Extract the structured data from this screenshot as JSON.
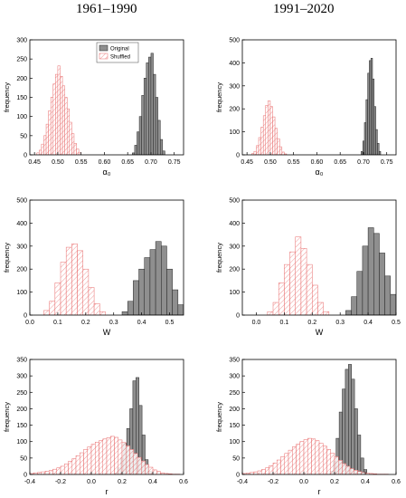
{
  "column_titles": [
    "1961–1990",
    "1991–2020"
  ],
  "colors": {
    "original": "#8f8f8f",
    "shuffled_stroke": "#e86a6a",
    "shuffled_fill": "#ffffff",
    "axes": "#000000"
  },
  "chart_data": [
    {
      "type": "bar",
      "panel": "alpha0-1961-1990",
      "xlabel": "α₀",
      "ylabel": "frequency",
      "xlim": [
        0.44,
        0.77
      ],
      "ylim": [
        0,
        300
      ],
      "xticks": [
        "0.45",
        "0.50",
        "0.55",
        "0.60",
        "0.65",
        "0.70",
        "0.75"
      ],
      "yticks": [
        "0",
        "50",
        "100",
        "150",
        "200",
        "250",
        "300"
      ],
      "legend": {
        "placement": "top-center",
        "entries": [
          "Original",
          "Shuffled"
        ]
      },
      "series": [
        {
          "name": "Shuffled",
          "bin_start": 0.455,
          "bin_width": 0.005,
          "values": [
            5,
            12,
            28,
            50,
            80,
            115,
            150,
            185,
            210,
            232,
            205,
            180,
            150,
            120,
            85,
            55,
            30,
            15,
            5
          ]
        },
        {
          "name": "Original",
          "bin_start": 0.66,
          "bin_width": 0.005,
          "values": [
            5,
            25,
            60,
            100,
            155,
            200,
            240,
            255,
            265,
            210,
            150,
            90,
            40,
            10
          ]
        }
      ]
    },
    {
      "type": "bar",
      "panel": "alpha0-1991-2020",
      "xlabel": "α₀",
      "ylabel": "frequency",
      "xlim": [
        0.44,
        0.77
      ],
      "ylim": [
        0,
        500
      ],
      "xticks": [
        "0.45",
        "0.50",
        "0.55",
        "0.60",
        "0.65",
        "0.70",
        "0.75"
      ],
      "yticks": [
        "0",
        "100",
        "200",
        "300",
        "400",
        "500"
      ],
      "series": [
        {
          "name": "Shuffled",
          "bin_start": 0.46,
          "bin_width": 0.005,
          "values": [
            5,
            15,
            40,
            75,
            120,
            170,
            215,
            235,
            210,
            165,
            115,
            70,
            35,
            12,
            4
          ]
        },
        {
          "name": "Original",
          "bin_start": 0.695,
          "bin_width": 0.0035,
          "values": [
            15,
            60,
            140,
            240,
            355,
            410,
            420,
            330,
            210,
            110,
            50,
            15
          ]
        }
      ]
    },
    {
      "type": "bar",
      "panel": "W-1961-1990",
      "xlabel": "W",
      "ylabel": "frequency",
      "xlim": [
        0.0,
        0.55
      ],
      "ylim": [
        0,
        500
      ],
      "xticks": [
        "0.0",
        "0.1",
        "0.2",
        "0.3",
        "0.4",
        "0.5"
      ],
      "yticks": [
        "0",
        "100",
        "200",
        "300",
        "400",
        "500"
      ],
      "series": [
        {
          "name": "Shuffled",
          "bin_start": 0.05,
          "bin_width": 0.02,
          "values": [
            20,
            60,
            140,
            230,
            295,
            310,
            280,
            200,
            120,
            50,
            15
          ]
        },
        {
          "name": "Original",
          "bin_start": 0.33,
          "bin_width": 0.02,
          "values": [
            15,
            60,
            150,
            200,
            250,
            285,
            320,
            300,
            200,
            110,
            45,
            10
          ]
        }
      ]
    },
    {
      "type": "bar",
      "panel": "W-1991-2020",
      "xlabel": "W",
      "ylabel": "frequency",
      "xlim": [
        -0.05,
        0.5
      ],
      "ylim": [
        0,
        500
      ],
      "xticks": [
        "0.0",
        "0.1",
        "0.2",
        "0.3",
        "0.4",
        "0.5"
      ],
      "yticks": [
        "0",
        "100",
        "200",
        "300",
        "400",
        "500"
      ],
      "series": [
        {
          "name": "Shuffled",
          "bin_start": 0.04,
          "bin_width": 0.02,
          "values": [
            15,
            55,
            140,
            220,
            275,
            340,
            290,
            220,
            130,
            55,
            15
          ]
        },
        {
          "name": "Original",
          "bin_start": 0.32,
          "bin_width": 0.02,
          "values": [
            20,
            80,
            190,
            300,
            380,
            355,
            270,
            170,
            90,
            40,
            10
          ]
        }
      ]
    },
    {
      "type": "bar",
      "panel": "r-1961-1990",
      "xlabel": "r",
      "ylabel": "frequency",
      "xlim": [
        -0.4,
        0.6
      ],
      "ylim": [
        0,
        350
      ],
      "xticks": [
        "-0.4",
        "-0.2",
        "0.0",
        "0.2",
        "0.4",
        "0.6"
      ],
      "yticks": [
        "0",
        "50",
        "100",
        "150",
        "200",
        "250",
        "300",
        "350"
      ],
      "series": [
        {
          "name": "Shuffled",
          "bin_start": -0.4,
          "bin_width": 0.025,
          "values": [
            3,
            5,
            6,
            8,
            10,
            12,
            16,
            20,
            25,
            32,
            40,
            48,
            57,
            66,
            76,
            84,
            92,
            98,
            103,
            108,
            112,
            116,
            113,
            105,
            97,
            87,
            76,
            64,
            52,
            41,
            30,
            22,
            14,
            9,
            5,
            3,
            2,
            1,
            1,
            0
          ]
        },
        {
          "name": "Original",
          "bin_start": 0.15,
          "bin_width": 0.02,
          "values": [
            5,
            20,
            50,
            95,
            140,
            200,
            285,
            295,
            210,
            120,
            45,
            10
          ]
        }
      ]
    },
    {
      "type": "bar",
      "panel": "r-1991-2020",
      "xlabel": "r",
      "ylabel": "frequency",
      "xlim": [
        -0.4,
        0.6
      ],
      "ylim": [
        0,
        350
      ],
      "xticks": [
        "-0.4",
        "-0.2",
        "0.0",
        "0.2",
        "0.4",
        "0.6"
      ],
      "yticks": [
        "0",
        "50",
        "100",
        "150",
        "200",
        "250",
        "300",
        "350"
      ],
      "series": [
        {
          "name": "Shuffled",
          "bin_start": -0.4,
          "bin_width": 0.025,
          "values": [
            3,
            4,
            6,
            8,
            11,
            15,
            20,
            27,
            35,
            44,
            54,
            64,
            74,
            84,
            92,
            100,
            106,
            110,
            108,
            103,
            95,
            86,
            76,
            65,
            54,
            43,
            33,
            25,
            18,
            13,
            9,
            6,
            4,
            3,
            2,
            1,
            1,
            1,
            0,
            0
          ]
        },
        {
          "name": "Original",
          "bin_start": 0.17,
          "bin_width": 0.02,
          "values": [
            10,
            40,
            110,
            190,
            260,
            320,
            335,
            290,
            200,
            120,
            50,
            15
          ]
        }
      ]
    }
  ]
}
